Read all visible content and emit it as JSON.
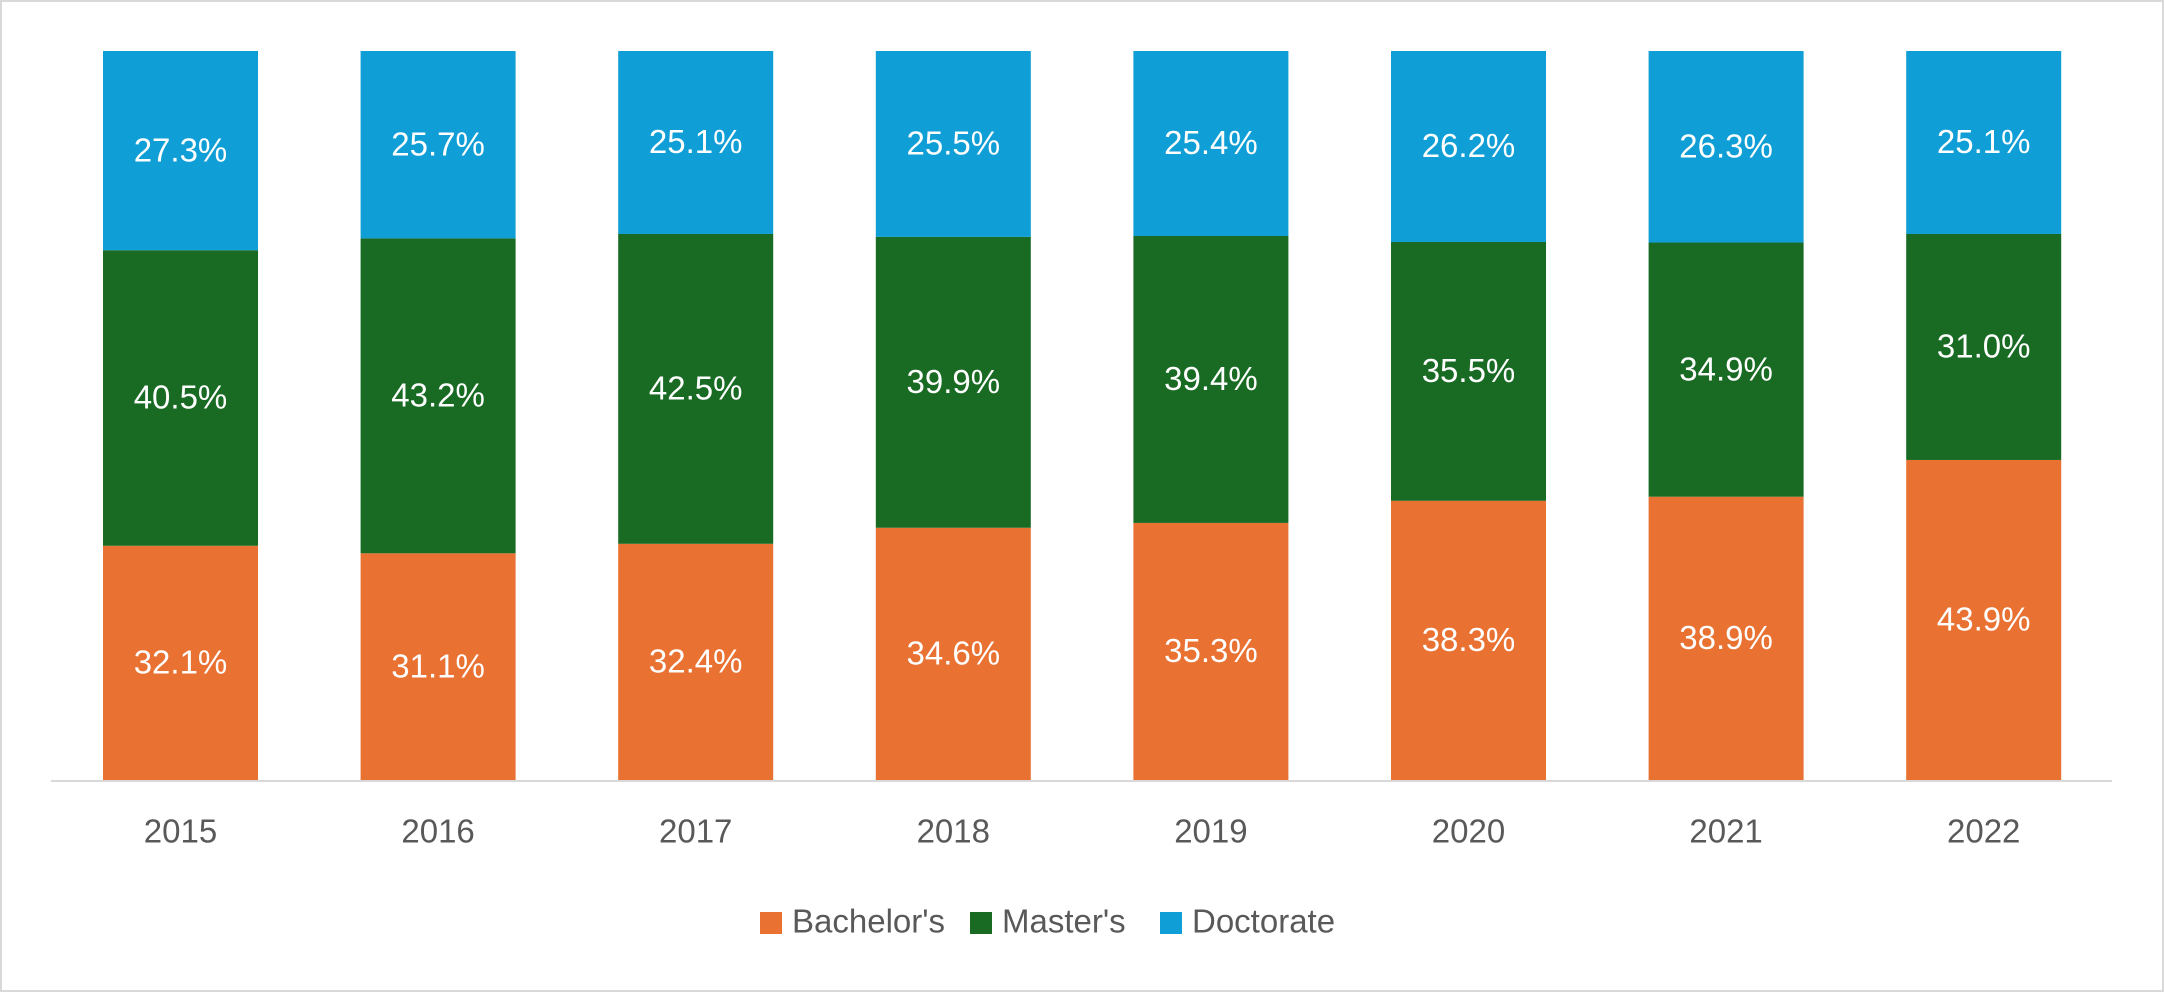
{
  "chart_data": {
    "type": "bar",
    "stacked": true,
    "percent_stacked": true,
    "title": "",
    "xlabel": "",
    "ylabel": "",
    "ylim": [
      0,
      100
    ],
    "grid": false,
    "legend_position": "bottom",
    "categories": [
      "2015",
      "2016",
      "2017",
      "2018",
      "2019",
      "2020",
      "2021",
      "2022"
    ],
    "series": [
      {
        "name": "Bachelor's",
        "color": "#E97132",
        "values": [
          32.1,
          31.1,
          32.4,
          34.6,
          35.3,
          38.3,
          38.9,
          43.9
        ],
        "labels": [
          "32.1%",
          "31.1%",
          "32.4%",
          "34.6%",
          "35.3%",
          "38.3%",
          "38.9%",
          "43.9%"
        ]
      },
      {
        "name": "Master's",
        "color": "#196B24",
        "values": [
          40.5,
          43.2,
          42.5,
          39.9,
          39.4,
          35.5,
          34.9,
          31.0
        ],
        "labels": [
          "40.5%",
          "43.2%",
          "42.5%",
          "39.9%",
          "39.4%",
          "35.5%",
          "34.9%",
          "31.0%"
        ]
      },
      {
        "name": "Doctorate",
        "color": "#0F9ED5",
        "values": [
          27.3,
          25.7,
          25.1,
          25.5,
          25.4,
          26.2,
          26.3,
          25.1
        ],
        "labels": [
          "27.3%",
          "25.7%",
          "25.1%",
          "25.5%",
          "25.4%",
          "26.2%",
          "26.3%",
          "25.1%"
        ]
      }
    ]
  }
}
